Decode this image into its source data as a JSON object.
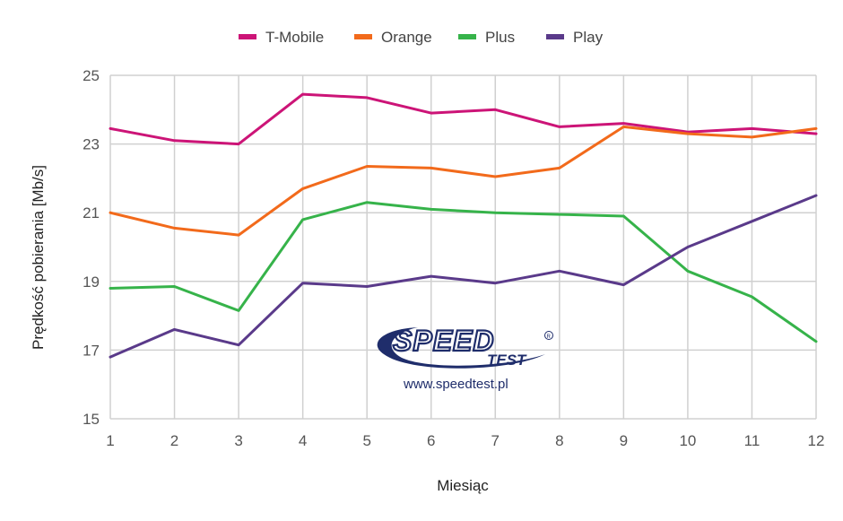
{
  "chart_data": {
    "type": "line",
    "title": "",
    "xlabel": "Miesiąc",
    "ylabel": "Prędkość pobierania [Mb/s]",
    "x": [
      1,
      2,
      3,
      4,
      5,
      6,
      7,
      8,
      9,
      10,
      11,
      12
    ],
    "x_tick_labels": [
      "1",
      "2",
      "3",
      "4",
      "5",
      "6",
      "7",
      "8",
      "9",
      "10",
      "11",
      "12"
    ],
    "ylim": [
      15,
      25
    ],
    "y_tick_labels": [
      "15",
      "17",
      "19",
      "21",
      "23",
      "25"
    ],
    "grid": true,
    "legend": "top",
    "series": [
      {
        "name": "T-Mobile",
        "color": "#cc1477",
        "values": [
          23.45,
          23.1,
          23.0,
          24.45,
          24.35,
          23.9,
          24.0,
          23.5,
          23.6,
          23.35,
          23.45,
          23.3
        ]
      },
      {
        "name": "Orange",
        "color": "#f26a1b",
        "values": [
          21.0,
          20.55,
          20.35,
          21.7,
          22.35,
          22.3,
          22.05,
          22.3,
          23.5,
          23.3,
          23.2,
          23.45
        ]
      },
      {
        "name": "Plus",
        "color": "#36b34a",
        "values": [
          18.8,
          18.85,
          18.15,
          20.8,
          21.3,
          21.1,
          21.0,
          20.95,
          20.9,
          19.3,
          18.55,
          17.25
        ]
      },
      {
        "name": "Play",
        "color": "#5a3a8a",
        "values": [
          16.8,
          17.6,
          17.15,
          18.95,
          18.85,
          19.15,
          18.95,
          19.3,
          18.9,
          20.0,
          20.75,
          21.5
        ]
      }
    ]
  },
  "watermark": {
    "logo_text": "SPEED TEST",
    "url": "www.speedtest.pl",
    "color": "#1f2d6b"
  }
}
